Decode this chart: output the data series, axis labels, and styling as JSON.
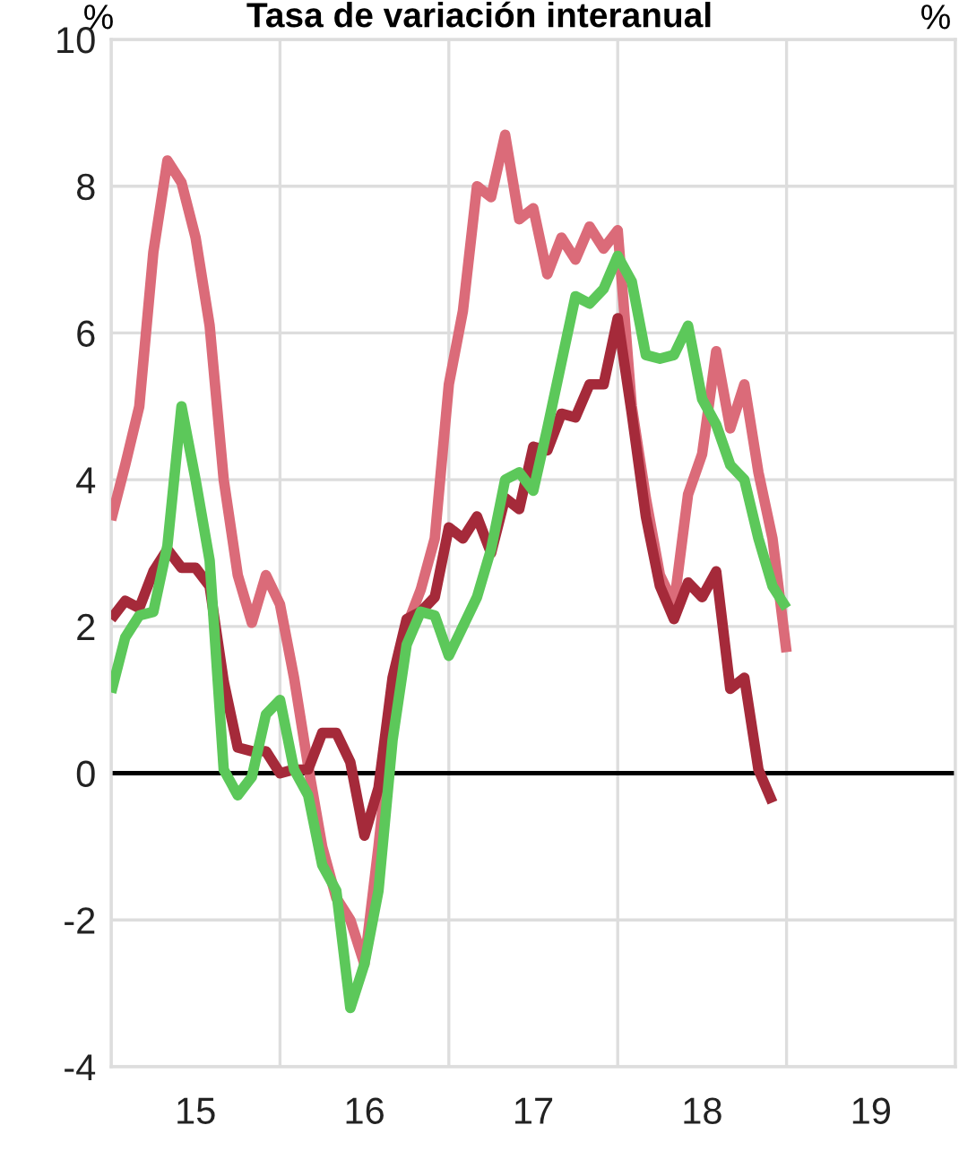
{
  "chart_data": {
    "type": "line",
    "title": "Tasa de variación interanual",
    "ylabel": "%",
    "y2label": "%",
    "x": [
      "2015-01",
      "2015-02",
      "2015-03",
      "2015-04",
      "2015-05",
      "2015-06",
      "2015-07",
      "2015-08",
      "2015-09",
      "2015-10",
      "2015-11",
      "2015-12",
      "2016-01",
      "2016-02",
      "2016-03",
      "2016-04",
      "2016-05",
      "2016-06",
      "2016-07",
      "2016-08",
      "2016-09",
      "2016-10",
      "2016-11",
      "2016-12",
      "2017-01",
      "2017-02",
      "2017-03",
      "2017-04",
      "2017-05",
      "2017-06",
      "2017-07",
      "2017-08",
      "2017-09",
      "2017-10",
      "2017-11",
      "2017-12",
      "2018-01",
      "2018-02",
      "2018-03",
      "2018-04",
      "2018-05",
      "2018-06",
      "2018-07",
      "2018-08",
      "2018-09",
      "2018-10",
      "2018-11",
      "2018-12",
      "2019-01"
    ],
    "series": [
      {
        "color": "#db6b79",
        "values": [
          3.45,
          4.2,
          5.0,
          7.1,
          8.35,
          8.05,
          7.3,
          6.1,
          4.0,
          2.7,
          2.05,
          2.7,
          2.3,
          1.3,
          0.1,
          -1.0,
          -1.7,
          -2.0,
          -2.6,
          -1.0,
          0.8,
          2.0,
          2.5,
          3.2,
          5.3,
          6.3,
          8.0,
          7.85,
          8.7,
          7.55,
          7.7,
          6.8,
          7.3,
          7.0,
          7.45,
          7.15,
          7.4,
          5.0,
          3.75,
          2.7,
          2.3,
          3.8,
          4.35,
          5.75,
          4.7,
          5.3,
          4.1,
          3.2,
          1.65
        ]
      },
      {
        "color": "#a52a3a",
        "values": [
          2.1,
          2.35,
          2.25,
          2.75,
          3.05,
          2.8,
          2.8,
          2.55,
          1.25,
          0.35,
          0.3,
          0.3,
          0.0,
          0.05,
          0.05,
          0.55,
          0.55,
          0.15,
          -0.85,
          -0.2,
          1.3,
          2.1,
          2.2,
          2.4,
          3.35,
          3.2,
          3.5,
          3.0,
          3.75,
          3.6,
          4.45,
          4.4,
          4.9,
          4.85,
          5.3,
          5.3,
          6.2,
          4.9,
          3.5,
          2.55,
          2.1,
          2.6,
          2.4,
          2.75,
          1.15,
          1.3,
          0.05,
          -0.4,
          null
        ]
      },
      {
        "color": "#5cc85a",
        "values": [
          1.1,
          1.85,
          2.15,
          2.2,
          3.1,
          5.0,
          4.0,
          2.9,
          0.05,
          -0.3,
          -0.05,
          0.8,
          1.0,
          0.05,
          -0.3,
          -1.25,
          -1.6,
          -3.2,
          -2.6,
          -1.6,
          0.45,
          1.75,
          2.2,
          2.15,
          1.6,
          2.0,
          2.4,
          3.05,
          4.0,
          4.1,
          3.85,
          4.7,
          5.6,
          6.5,
          6.4,
          6.6,
          7.05,
          6.7,
          5.7,
          5.65,
          5.7,
          6.1,
          5.1,
          4.75,
          4.2,
          4.0,
          3.2,
          2.55,
          2.25
        ]
      }
    ],
    "xlim": [
      "2015-01",
      "2020-01"
    ],
    "xticks": [
      {
        "value": "2015-01",
        "label": null
      },
      {
        "value": "2015-07",
        "label": "15"
      },
      {
        "value": "2016-01",
        "label": null
      },
      {
        "value": "2016-07",
        "label": "16"
      },
      {
        "value": "2017-01",
        "label": null
      },
      {
        "value": "2017-07",
        "label": "17"
      },
      {
        "value": "2018-01",
        "label": null
      },
      {
        "value": "2018-07",
        "label": "18"
      },
      {
        "value": "2019-01",
        "label": null
      },
      {
        "value": "2019-07",
        "label": "19"
      },
      {
        "value": "2020-01",
        "label": null
      }
    ],
    "ylim": [
      -4,
      10
    ],
    "yticks": [
      -4,
      -2,
      0,
      2,
      4,
      6,
      8,
      10
    ],
    "grid": true,
    "marker": "none",
    "line_style": "solid",
    "ref_lines": [
      {
        "axis": "y",
        "value": 0,
        "color": "#000000"
      }
    ]
  }
}
